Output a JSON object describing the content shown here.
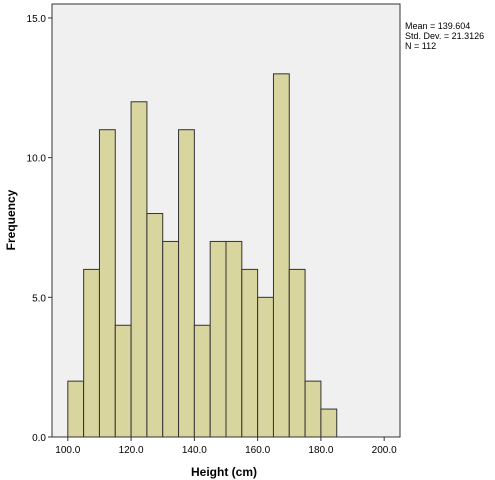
{
  "chart_data": {
    "type": "bar",
    "subtype": "histogram",
    "xlabel": "Height (cm)",
    "ylabel": "Frequency",
    "xlim": [
      95,
      205
    ],
    "ylim": [
      0,
      15.5
    ],
    "bin_width": 5,
    "bins": [
      {
        "start": 100,
        "count": 2
      },
      {
        "start": 105,
        "count": 6
      },
      {
        "start": 110,
        "count": 11
      },
      {
        "start": 115,
        "count": 4
      },
      {
        "start": 120,
        "count": 12
      },
      {
        "start": 125,
        "count": 8
      },
      {
        "start": 130,
        "count": 7
      },
      {
        "start": 135,
        "count": 11
      },
      {
        "start": 140,
        "count": 4
      },
      {
        "start": 145,
        "count": 7
      },
      {
        "start": 150,
        "count": 7
      },
      {
        "start": 155,
        "count": 6
      },
      {
        "start": 160,
        "count": 5
      },
      {
        "start": 165,
        "count": 13
      },
      {
        "start": 170,
        "count": 6
      },
      {
        "start": 175,
        "count": 2
      },
      {
        "start": 180,
        "count": 1
      }
    ],
    "x_ticks": [
      100,
      120,
      140,
      160,
      180,
      200
    ],
    "x_tick_labels": [
      "100.0",
      "120.0",
      "140.0",
      "160.0",
      "180.0",
      "200.0"
    ],
    "y_ticks": [
      0,
      5,
      10,
      15
    ],
    "y_tick_labels": [
      "0.0",
      "5.0",
      "10.0",
      "15.0"
    ],
    "stats": {
      "mean": "Mean = 139.604",
      "std_dev": "Std. Dev. = 21.3126",
      "n": "N = 112"
    },
    "grid": false,
    "colors": {
      "bar_fill": "#d9d59e",
      "bar_stroke": "#333333",
      "plot_background": "#f0f0f0",
      "frame": "#333333"
    }
  }
}
